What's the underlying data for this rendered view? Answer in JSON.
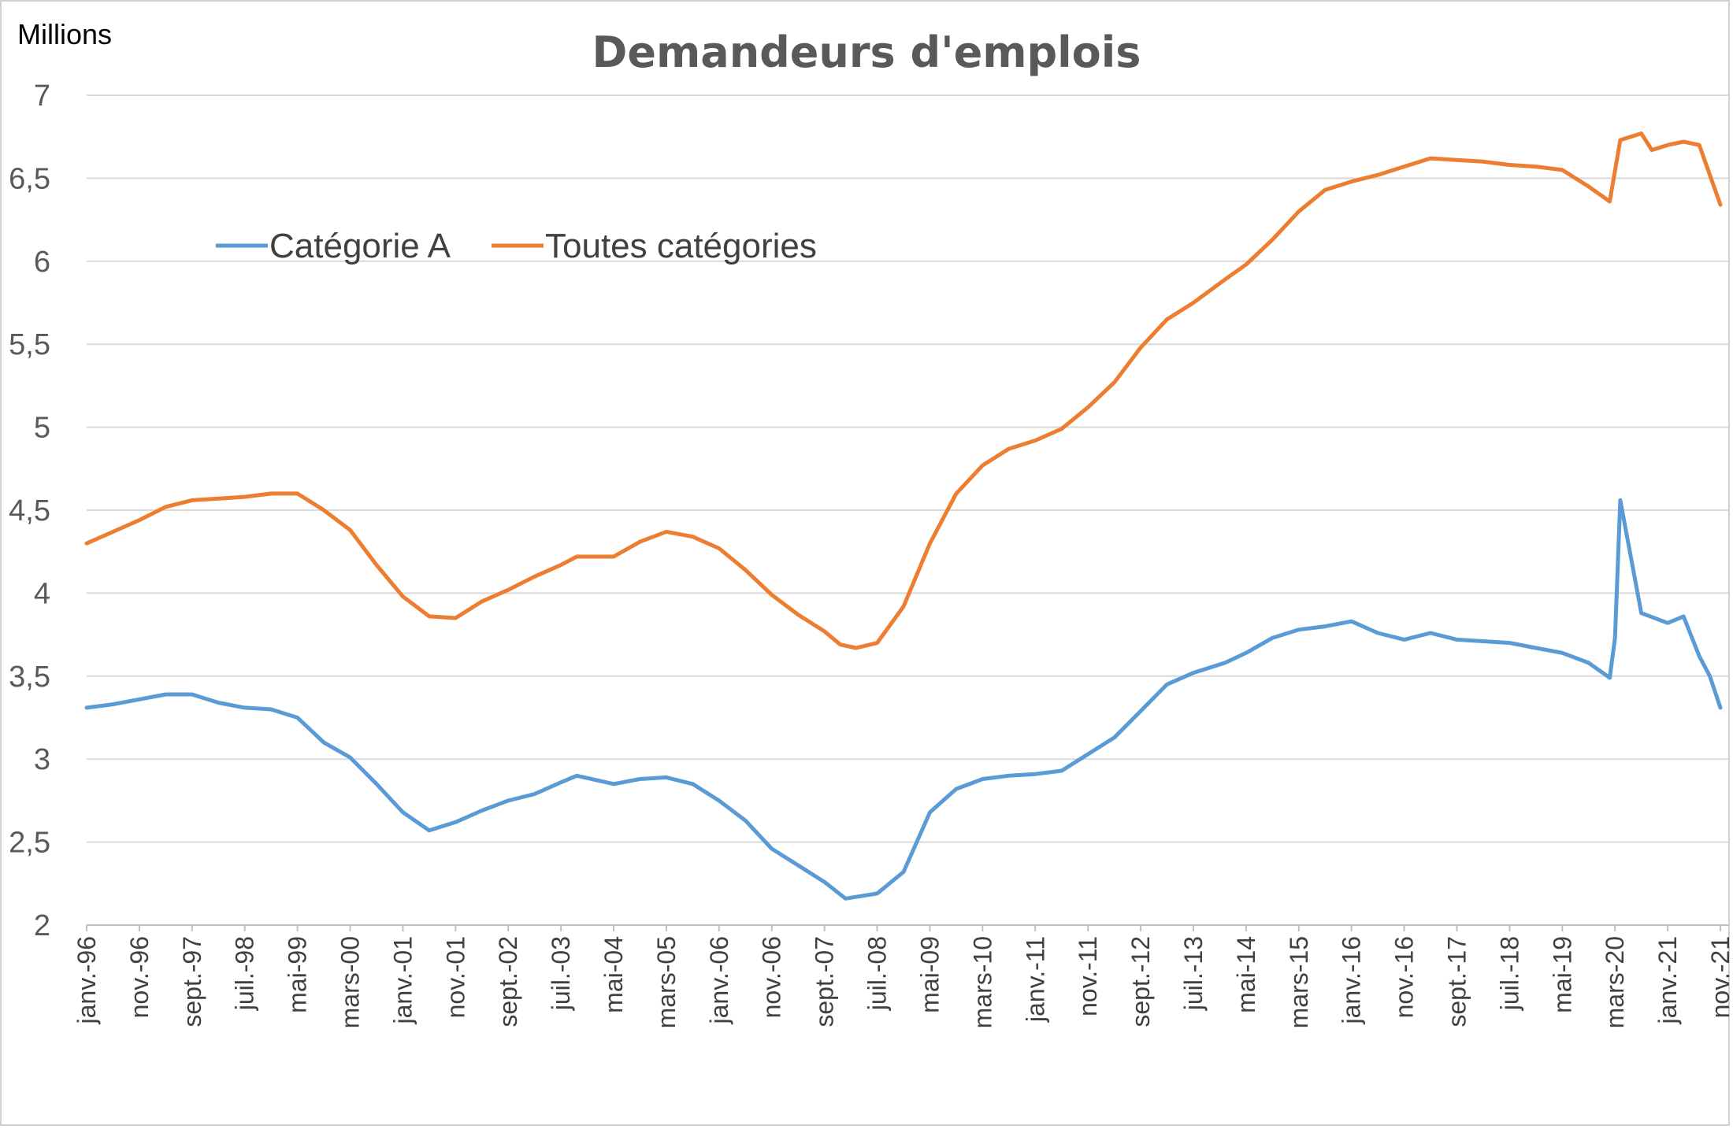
{
  "chart_data": {
    "type": "line",
    "title": "Demandeurs d'emplois",
    "unit_label": "Millions",
    "ylim": [
      2,
      7
    ],
    "y_ticks": [
      "2",
      "2,5",
      "3",
      "3,5",
      "4",
      "4,5",
      "5",
      "5,5",
      "6",
      "6,5",
      "7"
    ],
    "y_tick_values": [
      2,
      2.5,
      3,
      3.5,
      4,
      4.5,
      5,
      5.5,
      6,
      6.5,
      7
    ],
    "grid": true,
    "legend_position": "top-left",
    "x_range": [
      "1996-01",
      "2021-11"
    ],
    "x_tick_labels": [
      "janv.-96",
      "nov.-96",
      "sept.-97",
      "juil.-98",
      "mai-99",
      "mars-00",
      "janv.-01",
      "nov.-01",
      "sept.-02",
      "juil.-03",
      "mai-04",
      "mars-05",
      "janv.-06",
      "nov.-06",
      "sept.-07",
      "juil.-08",
      "mai-09",
      "mars-10",
      "janv.-11",
      "nov.-11",
      "sept.-12",
      "juil.-13",
      "mai-14",
      "mars-15",
      "janv.-16",
      "nov.-16",
      "sept.-17",
      "juil.-18",
      "mai-19",
      "mars-20",
      "janv.-21",
      "nov.-21"
    ],
    "x_tick_dates": [
      "1996-01",
      "1996-11",
      "1997-09",
      "1998-07",
      "1999-05",
      "2000-03",
      "2001-01",
      "2001-11",
      "2002-09",
      "2003-07",
      "2004-05",
      "2005-03",
      "2006-01",
      "2006-11",
      "2007-09",
      "2008-07",
      "2009-05",
      "2010-03",
      "2011-01",
      "2011-11",
      "2012-09",
      "2013-07",
      "2014-05",
      "2015-03",
      "2016-01",
      "2016-11",
      "2017-09",
      "2018-07",
      "2019-05",
      "2020-03",
      "2021-01",
      "2021-11"
    ],
    "series": [
      {
        "name": "Catégorie A",
        "color": "#5b9bd5",
        "points": [
          [
            "1996-01",
            3.31
          ],
          [
            "1996-06",
            3.33
          ],
          [
            "1996-11",
            3.36
          ],
          [
            "1997-04",
            3.39
          ],
          [
            "1997-09",
            3.39
          ],
          [
            "1998-02",
            3.34
          ],
          [
            "1998-07",
            3.31
          ],
          [
            "1998-12",
            3.3
          ],
          [
            "1999-05",
            3.25
          ],
          [
            "1999-10",
            3.1
          ],
          [
            "2000-03",
            3.01
          ],
          [
            "2000-08",
            2.85
          ],
          [
            "2001-01",
            2.68
          ],
          [
            "2001-06",
            2.57
          ],
          [
            "2001-11",
            2.62
          ],
          [
            "2002-04",
            2.69
          ],
          [
            "2002-09",
            2.75
          ],
          [
            "2003-02",
            2.79
          ],
          [
            "2003-07",
            2.86
          ],
          [
            "2003-10",
            2.9
          ],
          [
            "2004-05",
            2.85
          ],
          [
            "2004-10",
            2.88
          ],
          [
            "2005-03",
            2.89
          ],
          [
            "2005-08",
            2.85
          ],
          [
            "2006-01",
            2.75
          ],
          [
            "2006-06",
            2.63
          ],
          [
            "2006-11",
            2.46
          ],
          [
            "2007-04",
            2.36
          ],
          [
            "2007-09",
            2.26
          ],
          [
            "2008-01",
            2.16
          ],
          [
            "2008-07",
            2.19
          ],
          [
            "2008-12",
            2.32
          ],
          [
            "2009-05",
            2.68
          ],
          [
            "2009-10",
            2.82
          ],
          [
            "2010-03",
            2.88
          ],
          [
            "2010-08",
            2.9
          ],
          [
            "2011-01",
            2.91
          ],
          [
            "2011-06",
            2.93
          ],
          [
            "2011-11",
            3.03
          ],
          [
            "2012-04",
            3.13
          ],
          [
            "2012-09",
            3.29
          ],
          [
            "2013-02",
            3.45
          ],
          [
            "2013-07",
            3.52
          ],
          [
            "2014-01",
            3.58
          ],
          [
            "2014-05",
            3.64
          ],
          [
            "2014-10",
            3.73
          ],
          [
            "2015-03",
            3.78
          ],
          [
            "2015-08",
            3.8
          ],
          [
            "2016-01",
            3.83
          ],
          [
            "2016-06",
            3.76
          ],
          [
            "2016-11",
            3.72
          ],
          [
            "2017-04",
            3.76
          ],
          [
            "2017-09",
            3.72
          ],
          [
            "2018-02",
            3.71
          ],
          [
            "2018-07",
            3.7
          ],
          [
            "2018-12",
            3.67
          ],
          [
            "2019-05",
            3.64
          ],
          [
            "2019-10",
            3.58
          ],
          [
            "2020-02",
            3.49
          ],
          [
            "2020-03",
            3.73
          ],
          [
            "2020-04",
            4.56
          ],
          [
            "2020-08",
            3.88
          ],
          [
            "2021-01",
            3.82
          ],
          [
            "2021-04",
            3.86
          ],
          [
            "2021-07",
            3.62
          ],
          [
            "2021-09",
            3.5
          ],
          [
            "2021-11",
            3.31
          ]
        ]
      },
      {
        "name": "Toutes catégories",
        "color": "#ed7d31",
        "points": [
          [
            "1996-01",
            4.3
          ],
          [
            "1996-06",
            4.37
          ],
          [
            "1996-11",
            4.44
          ],
          [
            "1997-04",
            4.52
          ],
          [
            "1997-09",
            4.56
          ],
          [
            "1998-02",
            4.57
          ],
          [
            "1998-07",
            4.58
          ],
          [
            "1998-12",
            4.6
          ],
          [
            "1999-05",
            4.6
          ],
          [
            "1999-10",
            4.5
          ],
          [
            "2000-03",
            4.38
          ],
          [
            "2000-08",
            4.17
          ],
          [
            "2001-01",
            3.98
          ],
          [
            "2001-06",
            3.86
          ],
          [
            "2001-11",
            3.85
          ],
          [
            "2002-04",
            3.95
          ],
          [
            "2002-09",
            4.02
          ],
          [
            "2003-02",
            4.1
          ],
          [
            "2003-07",
            4.17
          ],
          [
            "2003-10",
            4.22
          ],
          [
            "2004-05",
            4.22
          ],
          [
            "2004-10",
            4.31
          ],
          [
            "2005-03",
            4.37
          ],
          [
            "2005-08",
            4.34
          ],
          [
            "2006-01",
            4.27
          ],
          [
            "2006-06",
            4.14
          ],
          [
            "2006-11",
            3.99
          ],
          [
            "2007-04",
            3.87
          ],
          [
            "2007-09",
            3.77
          ],
          [
            "2007-12",
            3.69
          ],
          [
            "2008-03",
            3.67
          ],
          [
            "2008-07",
            3.7
          ],
          [
            "2008-12",
            3.92
          ],
          [
            "2009-05",
            4.3
          ],
          [
            "2009-10",
            4.6
          ],
          [
            "2010-03",
            4.77
          ],
          [
            "2010-08",
            4.87
          ],
          [
            "2011-01",
            4.92
          ],
          [
            "2011-06",
            4.99
          ],
          [
            "2011-11",
            5.12
          ],
          [
            "2012-04",
            5.27
          ],
          [
            "2012-09",
            5.48
          ],
          [
            "2013-02",
            5.65
          ],
          [
            "2013-07",
            5.75
          ],
          [
            "2014-01",
            5.89
          ],
          [
            "2014-05",
            5.98
          ],
          [
            "2014-10",
            6.13
          ],
          [
            "2015-03",
            6.3
          ],
          [
            "2015-08",
            6.43
          ],
          [
            "2016-01",
            6.48
          ],
          [
            "2016-06",
            6.52
          ],
          [
            "2016-11",
            6.57
          ],
          [
            "2017-04",
            6.62
          ],
          [
            "2017-09",
            6.61
          ],
          [
            "2018-02",
            6.6
          ],
          [
            "2018-07",
            6.58
          ],
          [
            "2018-12",
            6.57
          ],
          [
            "2019-05",
            6.55
          ],
          [
            "2019-10",
            6.45
          ],
          [
            "2020-02",
            6.36
          ],
          [
            "2020-04",
            6.73
          ],
          [
            "2020-08",
            6.77
          ],
          [
            "2020-10",
            6.67
          ],
          [
            "2021-01",
            6.7
          ],
          [
            "2021-04",
            6.72
          ],
          [
            "2021-07",
            6.7
          ],
          [
            "2021-09",
            6.52
          ],
          [
            "2021-11",
            6.34
          ]
        ]
      }
    ]
  }
}
